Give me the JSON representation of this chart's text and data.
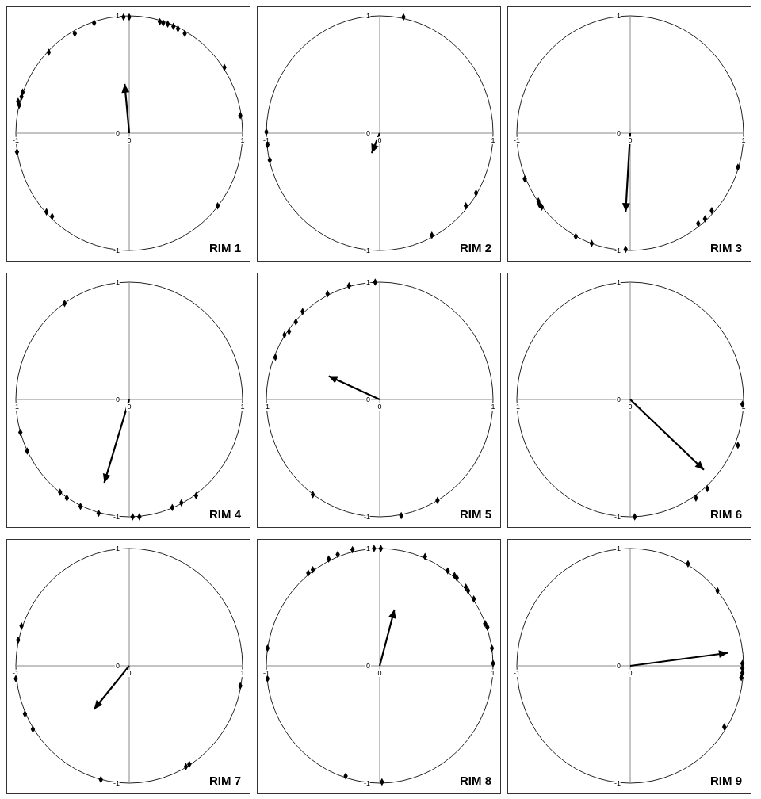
{
  "chart_data": [
    {
      "type": "scatter",
      "title": "RIM 1",
      "xlim": [
        -1,
        1
      ],
      "ylim": [
        -1,
        1
      ],
      "xticks": [
        -1,
        0,
        1
      ],
      "yticks": [
        -1,
        0,
        1
      ],
      "series": [
        {
          "marker": "diamond",
          "color": "#000000",
          "x": [
            -0.05,
            0,
            -0.31,
            -0.48,
            -0.71,
            -0.94,
            -0.95,
            -0.97,
            -0.98,
            -0.99,
            -0.73,
            -0.68,
            0.27,
            0.3,
            0.34,
            0.39,
            0.43,
            0.49,
            0.84,
            0.98,
            0.78
          ],
          "values": [
            0.99,
            0.99,
            0.94,
            0.85,
            0.69,
            0.35,
            0.31,
            0.24,
            0.27,
            -0.16,
            -0.67,
            -0.71,
            0.95,
            0.94,
            0.93,
            0.91,
            0.89,
            0.85,
            0.56,
            0.15,
            -0.62
          ]
        },
        {
          "type": "line",
          "color": "#000000",
          "x": [
            0,
            -0.04
          ],
          "values": [
            0,
            0.42
          ]
        }
      ]
    },
    {
      "type": "scatter",
      "title": "RIM 2",
      "xlim": [
        -1,
        1
      ],
      "ylim": [
        -1,
        1
      ],
      "xticks": [
        -1,
        0,
        1
      ],
      "yticks": [
        -1,
        0,
        1
      ],
      "series": [
        {
          "marker": "diamond",
          "color": "#000000",
          "x": [
            0.21,
            -1,
            -0.99,
            -0.97,
            0.85,
            0.76,
            0.46
          ],
          "values": [
            0.99,
            0.01,
            -0.1,
            -0.23,
            -0.51,
            -0.62,
            -0.87
          ]
        },
        {
          "type": "line",
          "color": "#000000",
          "x": [
            0,
            -0.07
          ],
          "values": [
            0,
            -0.17
          ]
        }
      ]
    },
    {
      "type": "scatter",
      "title": "RIM 3",
      "xlim": [
        -1,
        1
      ],
      "ylim": [
        -1,
        1
      ],
      "xticks": [
        -1,
        0,
        1
      ],
      "yticks": [
        -1,
        0,
        1
      ],
      "series": [
        {
          "marker": "diamond",
          "color": "#000000",
          "x": [
            -0.93,
            -0.81,
            -0.8,
            -0.78,
            -0.48,
            -0.34,
            -0.04,
            0.6,
            0.66,
            0.72,
            0.95
          ],
          "values": [
            -0.39,
            -0.58,
            -0.61,
            -0.63,
            -0.88,
            -0.94,
            -0.99,
            -0.77,
            -0.73,
            -0.66,
            -0.29
          ]
        },
        {
          "type": "line",
          "color": "#000000",
          "x": [
            0,
            -0.04
          ],
          "values": [
            0,
            -0.67
          ]
        }
      ]
    },
    {
      "type": "scatter",
      "title": "RIM 4",
      "xlim": [
        -1,
        1
      ],
      "ylim": [
        -1,
        1
      ],
      "xticks": [
        -1,
        0,
        1
      ],
      "yticks": [
        -1,
        0,
        1
      ],
      "series": [
        {
          "marker": "diamond",
          "color": "#000000",
          "x": [
            -0.57,
            -0.96,
            -0.9,
            -0.61,
            -0.55,
            -0.43,
            -0.27,
            0.03,
            0.09,
            0.38,
            0.46,
            0.59
          ],
          "values": [
            0.82,
            -0.28,
            -0.44,
            -0.79,
            -0.84,
            -0.91,
            -0.97,
            -1,
            -1,
            -0.92,
            -0.88,
            -0.82
          ]
        },
        {
          "type": "line",
          "color": "#000000",
          "x": [
            0,
            -0.22
          ],
          "values": [
            0,
            -0.71
          ]
        }
      ]
    },
    {
      "type": "scatter",
      "title": "RIM 5",
      "xlim": [
        -1,
        1
      ],
      "ylim": [
        -1,
        1
      ],
      "xticks": [
        -1,
        0,
        1
      ],
      "yticks": [
        -1,
        0,
        1
      ],
      "series": [
        {
          "marker": "diamond",
          "color": "#000000",
          "x": [
            -0.04,
            -0.27,
            -0.46,
            -0.68,
            -0.74,
            -0.8,
            -0.84,
            -0.92,
            -0.59,
            0.19,
            0.51
          ],
          "values": [
            1,
            0.97,
            0.9,
            0.75,
            0.66,
            0.58,
            0.55,
            0.36,
            -0.81,
            -0.99,
            -0.86
          ]
        },
        {
          "type": "line",
          "color": "#000000",
          "x": [
            0,
            -0.45
          ],
          "values": [
            0,
            0.2
          ]
        }
      ]
    },
    {
      "type": "scatter",
      "title": "RIM 6",
      "xlim": [
        -1,
        1
      ],
      "ylim": [
        -1,
        1
      ],
      "xticks": [
        -1,
        0,
        1
      ],
      "yticks": [
        -1,
        0,
        1
      ],
      "series": [
        {
          "marker": "diamond",
          "color": "#000000",
          "x": [
            0.99,
            0.95,
            0.68,
            0.58,
            0.04
          ],
          "values": [
            -0.04,
            -0.39,
            -0.76,
            -0.84,
            -1
          ]
        },
        {
          "type": "line",
          "color": "#000000",
          "x": [
            0,
            0.65
          ],
          "values": [
            0,
            -0.6
          ]
        }
      ]
    },
    {
      "type": "scatter",
      "title": "RIM 7",
      "xlim": [
        -1,
        1
      ],
      "ylim": [
        -1,
        1
      ],
      "xticks": [
        -1,
        0,
        1
      ],
      "yticks": [
        -1,
        0,
        1
      ],
      "series": [
        {
          "marker": "diamond",
          "color": "#000000",
          "x": [
            -0.95,
            -0.98,
            -1,
            -0.92,
            -0.85,
            -0.25,
            0.5,
            0.53,
            0.98
          ],
          "values": [
            0.34,
            0.22,
            -0.11,
            -0.41,
            -0.54,
            -0.97,
            -0.86,
            -0.84,
            -0.17
          ]
        },
        {
          "type": "line",
          "color": "#000000",
          "x": [
            0,
            -0.31
          ],
          "values": [
            0,
            -0.37
          ]
        }
      ]
    },
    {
      "type": "scatter",
      "title": "RIM 8",
      "xlim": [
        -1,
        1
      ],
      "ylim": [
        -1,
        1
      ],
      "xticks": [
        -1,
        0,
        1
      ],
      "yticks": [
        -1,
        0,
        1
      ],
      "series": [
        {
          "marker": "diamond",
          "color": "#000000",
          "x": [
            -0.99,
            -0.99,
            -0.59,
            -0.63,
            -0.45,
            -0.37,
            -0.24,
            -0.05,
            0.01,
            0.4,
            0.6,
            0.66,
            0.68,
            0.76,
            0.78,
            0.83,
            0.93,
            0.95,
            0.99,
            1,
            -0.3,
            0.02
          ],
          "values": [
            0.15,
            -0.11,
            0.82,
            0.79,
            0.91,
            0.95,
            0.99,
            1,
            1,
            0.93,
            0.81,
            0.77,
            0.75,
            0.67,
            0.64,
            0.57,
            0.36,
            0.33,
            0.15,
            0.02,
            -0.94,
            -0.99
          ]
        },
        {
          "type": "line",
          "color": "#000000",
          "x": [
            0,
            0.13
          ],
          "values": [
            0,
            0.48
          ]
        }
      ]
    },
    {
      "type": "scatter",
      "title": "RIM 9",
      "xlim": [
        -1,
        1
      ],
      "ylim": [
        -1,
        1
      ],
      "xticks": [
        -1,
        0,
        1
      ],
      "yticks": [
        -1,
        0,
        1
      ],
      "series": [
        {
          "marker": "diamond",
          "color": "#000000",
          "x": [
            0.51,
            0.77,
            0.99,
            0.99,
            0.99,
            0.98,
            0.83
          ],
          "values": [
            0.87,
            0.64,
            0.02,
            -0.02,
            -0.06,
            -0.1,
            -0.52
          ]
        },
        {
          "type": "line",
          "color": "#000000",
          "x": [
            0,
            0.86
          ],
          "values": [
            0,
            0.11
          ]
        }
      ]
    }
  ]
}
